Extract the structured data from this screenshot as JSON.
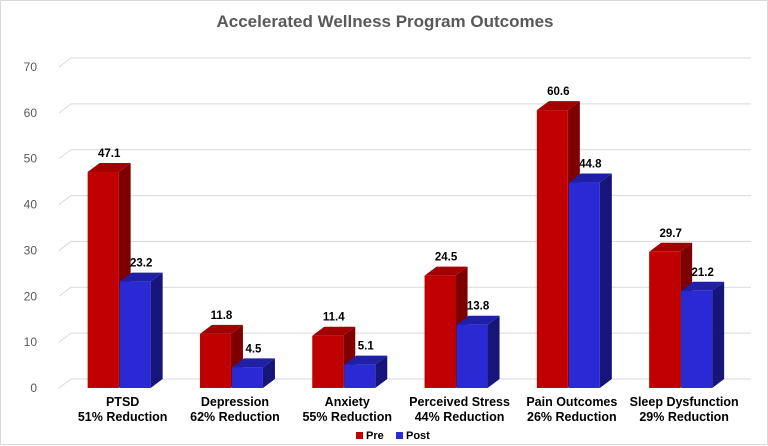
{
  "chart_data": {
    "type": "bar",
    "title": "Accelerated Wellness Program Outcomes",
    "categories": [
      [
        "PTSD",
        "51% Reduction"
      ],
      [
        "Depression",
        "62% Reduction"
      ],
      [
        "Anxiety",
        "55% Reduction"
      ],
      [
        "Perceived Stress",
        "44% Reduction"
      ],
      [
        "Pain Outcomes",
        "26% Reduction"
      ],
      [
        "Sleep Dysfunction",
        "29% Reduction"
      ]
    ],
    "series": [
      {
        "name": "Pre",
        "values": [
          47.1,
          11.8,
          11.4,
          24.5,
          60.6,
          29.7
        ],
        "color": "#c00000",
        "side_color": "#7f0000",
        "top_color": "#a30000"
      },
      {
        "name": "Post",
        "values": [
          23.2,
          4.5,
          5.1,
          13.8,
          44.8,
          21.2
        ],
        "color": "#2a2ad4",
        "side_color": "#15157a",
        "top_color": "#1f1fa8"
      }
    ],
    "ylim": [
      0,
      70
    ],
    "yticks": [
      0,
      10,
      20,
      30,
      40,
      50,
      60,
      70
    ],
    "grid": true,
    "legend_position": "bottom"
  }
}
